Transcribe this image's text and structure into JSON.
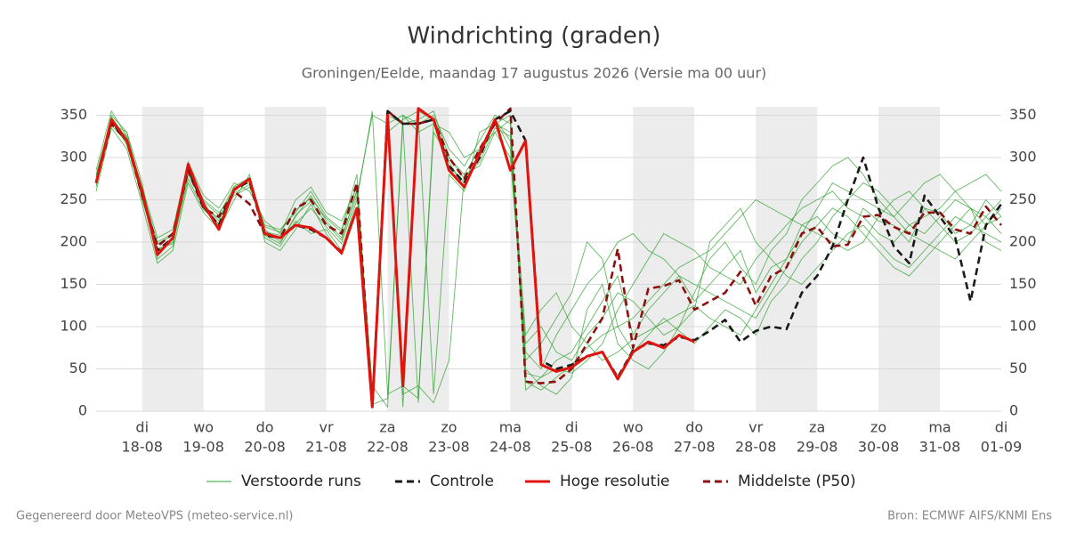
{
  "chart_data": {
    "type": "line",
    "title": "Windrichting (graden)",
    "subtitle": "Groningen/Eelde, maandag 17 augustus 2026 (Versie ma 00 uur)",
    "footer_left": "Gegenereerd door MeteoVPS (meteo-service.nl)",
    "footer_right": "Bron: ECMWF AIFS/KNMI Ens",
    "categories": [
      null,
      null,
      null,
      "18-08",
      null,
      null,
      null,
      "19-08",
      null,
      null,
      null,
      "20-08",
      null,
      null,
      null,
      "21-08",
      null,
      null,
      null,
      "22-08",
      null,
      null,
      null,
      "23-08",
      null,
      null,
      null,
      "24-08",
      null,
      null,
      null,
      "25-08",
      null,
      null,
      null,
      "26-08",
      null,
      null,
      null,
      "27-08",
      null,
      null,
      null,
      "28-08",
      null,
      null,
      null,
      "29-08",
      null,
      null,
      null,
      "30-08",
      null,
      null,
      null,
      "31-08",
      null,
      null,
      null,
      "01-09"
    ],
    "weekdays": [
      null,
      null,
      null,
      "di",
      null,
      null,
      null,
      "wo",
      null,
      null,
      null,
      "do",
      null,
      null,
      null,
      "vr",
      null,
      null,
      null,
      "za",
      null,
      null,
      null,
      "zo",
      null,
      null,
      null,
      "ma",
      null,
      null,
      null,
      "di",
      null,
      null,
      null,
      "wo",
      null,
      null,
      null,
      "do",
      null,
      null,
      null,
      "vr",
      null,
      null,
      null,
      "za",
      null,
      null,
      null,
      "zo",
      null,
      null,
      null,
      "ma",
      null,
      null,
      null,
      "di"
    ],
    "ylim": [
      0,
      360
    ],
    "yticks": [
      0,
      50,
      100,
      150,
      200,
      250,
      300,
      350
    ],
    "grid": true,
    "ensemble": {
      "name": "Verstoorde runs",
      "color": "#2ca02c",
      "members": [
        [
          275,
          340,
          325,
          250,
          190,
          200,
          280,
          245,
          225,
          265,
          270,
          215,
          200,
          230,
          255,
          225,
          205,
          260,
          15,
          340,
          350,
          330,
          340,
          290,
          270,
          300,
          340,
          330,
          45,
          40,
          60,
          70,
          100,
          130,
          160,
          90,
          120,
          140,
          160,
          130,
          150,
          170,
          190,
          140,
          170,
          180,
          220,
          230,
          210,
          200,
          240,
          225,
          220,
          200,
          240,
          235,
          210,
          220,
          250,
          230
        ],
        [
          265,
          350,
          330,
          270,
          180,
          195,
          290,
          240,
          220,
          260,
          275,
          205,
          195,
          225,
          210,
          215,
          190,
          250,
          355,
          20,
          30,
          15,
          340,
          330,
          300,
          310,
          345,
          320,
          60,
          80,
          110,
          140,
          200,
          180,
          100,
          70,
          90,
          110,
          95,
          80,
          100,
          120,
          110,
          90,
          130,
          150,
          180,
          200,
          230,
          250,
          270,
          260,
          240,
          220,
          210,
          230,
          250,
          240,
          200,
          190
        ],
        [
          280,
          345,
          315,
          255,
          200,
          210,
          285,
          250,
          235,
          255,
          265,
          220,
          215,
          235,
          260,
          230,
          215,
          280,
          10,
          345,
          5,
          350,
          20,
          280,
          260,
          330,
          340,
          350,
          25,
          40,
          50,
          45,
          60,
          80,
          120,
          150,
          180,
          210,
          200,
          190,
          170,
          160,
          150,
          180,
          200,
          220,
          240,
          250,
          260,
          240,
          230,
          210,
          200,
          220,
          230,
          240,
          260,
          270,
          280,
          260
        ],
        [
          260,
          335,
          310,
          245,
          175,
          190,
          270,
          235,
          215,
          250,
          280,
          200,
          190,
          215,
          245,
          210,
          185,
          240,
          20,
          350,
          340,
          10,
          330,
          300,
          280,
          310,
          330,
          300,
          80,
          100,
          70,
          60,
          90,
          110,
          140,
          130,
          110,
          90,
          100,
          120,
          200,
          220,
          240,
          200,
          180,
          160,
          150,
          170,
          190,
          210,
          220,
          200,
          180,
          170,
          190,
          210,
          230,
          220,
          210,
          200
        ],
        [
          285,
          355,
          325,
          265,
          205,
          215,
          295,
          255,
          240,
          270,
          260,
          225,
          210,
          250,
          265,
          235,
          225,
          265,
          30,
          5,
          350,
          340,
          350,
          310,
          290,
          320,
          350,
          340,
          35,
          25,
          40,
          55,
          75,
          90,
          100,
          110,
          130,
          150,
          170,
          180,
          190,
          210,
          230,
          250,
          240,
          230,
          220,
          210,
          200,
          190,
          200,
          230,
          250,
          260,
          240,
          220,
          200,
          210,
          230,
          250
        ],
        [
          270,
          340,
          330,
          258,
          185,
          205,
          288,
          242,
          228,
          262,
          272,
          212,
          208,
          222,
          240,
          218,
          198,
          255,
          350,
          340,
          20,
          30,
          10,
          60,
          280,
          290,
          330,
          345,
          50,
          30,
          20,
          40,
          120,
          150,
          80,
          60,
          50,
          70,
          100,
          140,
          180,
          200,
          170,
          150,
          190,
          210,
          250,
          270,
          290,
          300,
          280,
          250,
          230,
          210,
          200,
          190,
          180,
          200,
          220,
          240
        ],
        [
          268,
          338,
          318,
          252,
          192,
          198,
          275,
          238,
          222,
          258,
          268,
          208,
          198,
          232,
          248,
          222,
          202,
          262,
          25,
          330,
          345,
          355,
          345,
          295,
          265,
          305,
          345,
          310,
          70,
          50,
          90,
          120,
          150,
          170,
          200,
          210,
          190,
          180,
          160,
          150,
          140,
          130,
          120,
          110,
          140,
          170,
          200,
          220,
          240,
          230,
          210,
          190,
          170,
          160,
          180,
          200,
          220,
          240,
          230,
          210
        ],
        [
          278,
          348,
          322,
          262,
          198,
          208,
          282,
          248,
          232,
          266,
          276,
          218,
          212,
          238,
          252,
          228,
          212,
          268,
          8,
          15,
          340,
          345,
          355,
          300,
          275,
          295,
          335,
          325,
          90,
          120,
          140,
          100,
          80,
          60,
          70,
          85,
          95,
          105,
          115,
          125,
          110,
          100,
          90,
          120,
          150,
          180,
          210,
          240,
          270,
          260,
          250,
          240,
          230,
          250,
          270,
          280,
          260,
          240,
          220,
          230
        ]
      ]
    },
    "series": [
      {
        "name": "Controle",
        "color": "#1a1a1a",
        "style": "dashed",
        "values": [
          270,
          342,
          320,
          258,
          190,
          205,
          288,
          242,
          220,
          262,
          272,
          208,
          205,
          220,
          215,
          205,
          188,
          240,
          5,
          355,
          340,
          340,
          345,
          290,
          270,
          300,
          345,
          355,
          320,
          60,
          50,
          55,
          65,
          70,
          40,
          72,
          80,
          78,
          88,
          84,
          95,
          108,
          82,
          95,
          100,
          97,
          140,
          160,
          195,
          250,
          300,
          240,
          195,
          175,
          255,
          230,
          205,
          130,
          220,
          245
        ]
      },
      {
        "name": "Hoge resolutie",
        "color": "#e0140e",
        "style": "solid",
        "values": [
          270,
          345,
          320,
          260,
          185,
          205,
          292,
          245,
          215,
          262,
          275,
          210,
          205,
          220,
          217,
          205,
          187,
          240,
          5,
          350,
          30,
          358,
          345,
          285,
          265,
          305,
          345,
          285,
          320,
          55,
          47,
          52,
          65,
          70,
          38,
          70,
          82,
          75,
          90,
          82,
          null,
          null,
          null,
          null,
          null,
          null,
          null,
          null,
          null,
          null,
          null,
          null,
          null,
          null,
          null,
          null,
          null,
          null,
          null,
          null
        ]
      },
      {
        "name": "Middelste (P50)",
        "color": "#8b1010",
        "style": "dashed",
        "values": [
          270,
          340,
          320,
          255,
          195,
          210,
          285,
          240,
          230,
          260,
          245,
          210,
          205,
          240,
          250,
          220,
          210,
          270,
          5,
          355,
          340,
          340,
          345,
          300,
          275,
          310,
          340,
          358,
          35,
          33,
          35,
          50,
          80,
          110,
          192,
          75,
          145,
          148,
          155,
          120,
          130,
          140,
          165,
          125,
          160,
          170,
          210,
          218,
          195,
          197,
          230,
          232,
          218,
          210,
          235,
          235,
          215,
          210,
          242,
          220
        ]
      }
    ]
  }
}
